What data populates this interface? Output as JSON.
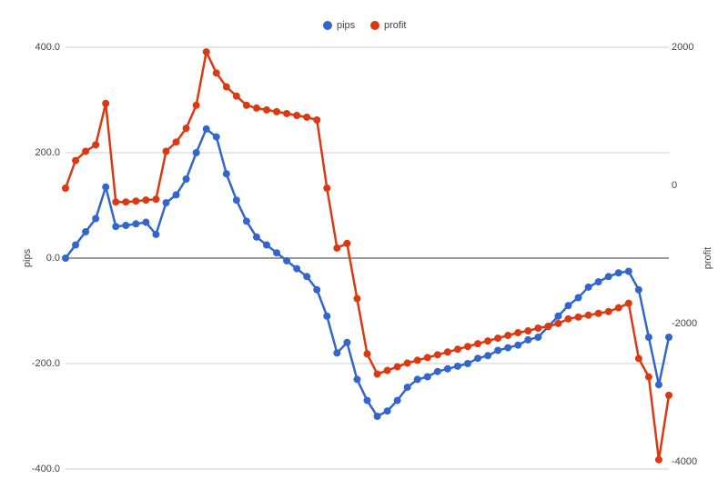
{
  "chart_data": {
    "type": "line",
    "ylabel": "pips",
    "y2label": "profit",
    "categories": [
      null,
      null,
      null,
      null,
      null,
      null,
      null,
      null,
      null,
      null,
      null,
      null,
      null,
      null,
      null,
      null,
      null,
      null,
      null,
      null,
      null,
      null,
      null,
      null,
      null,
      null,
      null,
      null,
      null,
      null,
      null,
      null,
      null,
      null,
      null,
      null,
      null,
      null,
      null,
      null,
      null,
      null,
      null,
      null,
      null,
      null,
      null,
      null,
      null,
      null,
      null,
      null,
      null,
      null,
      null,
      null,
      null,
      null,
      null,
      null,
      null
    ],
    "series": [
      {
        "name": "pips",
        "color": "#3366cc",
        "axis": "y",
        "values": [
          0,
          25,
          50,
          75,
          135,
          60,
          62,
          65,
          68,
          45,
          105,
          120,
          150,
          200,
          245,
          230,
          160,
          110,
          70,
          40,
          25,
          10,
          -5,
          -20,
          -35,
          -60,
          -110,
          -180,
          -160,
          -230,
          -270,
          -300,
          -290,
          -270,
          -245,
          -230,
          -225,
          -215,
          -210,
          -205,
          -200,
          -190,
          -185,
          -175,
          -170,
          -165,
          -155,
          -150,
          -130,
          -110,
          -90,
          -75,
          -55,
          -45,
          -35,
          -28,
          -25,
          -60,
          -150,
          -240,
          -150
        ]
      },
      {
        "name": "profit",
        "color": "#dc3912",
        "axis": "y2",
        "values": [
          -40,
          360,
          493,
          587,
          1187,
          -240,
          -240,
          -227,
          -213,
          -200,
          493,
          627,
          827,
          1160,
          1933,
          1627,
          1427,
          1293,
          1160,
          1120,
          1093,
          1067,
          1040,
          1013,
          987,
          947,
          -40,
          -907,
          -840,
          -1640,
          -2440,
          -2733,
          -2680,
          -2627,
          -2573,
          -2533,
          -2493,
          -2453,
          -2413,
          -2373,
          -2333,
          -2293,
          -2253,
          -2213,
          -2173,
          -2133,
          -2107,
          -2067,
          -2040,
          -2000,
          -1933,
          -1907,
          -1880,
          -1853,
          -1827,
          -1773,
          -1707,
          -2507,
          -2773,
          -3973,
          -3040
        ]
      }
    ],
    "ylim": [
      -400,
      400
    ],
    "yticks": [
      {
        "value": -400,
        "label": "-400.0"
      },
      {
        "value": -200,
        "label": "-200.0"
      },
      {
        "value": 0,
        "label": "0.0"
      },
      {
        "value": 200,
        "label": "200.0"
      },
      {
        "value": 400,
        "label": "400.0"
      }
    ],
    "y2lim": [
      -4107,
      2000
    ],
    "y2ticks": [
      -4000,
      -2000,
      0,
      2000
    ],
    "grid": true,
    "legend": "top"
  }
}
